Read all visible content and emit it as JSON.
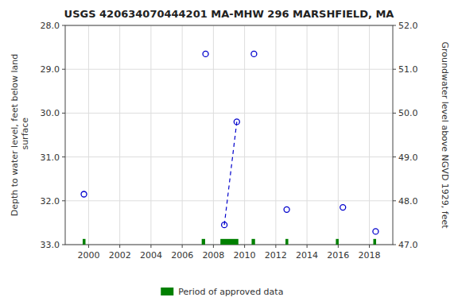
{
  "chart_data": {
    "type": "scatter",
    "title": "USGS 420634070444201 MA-MHW 296 MARSHFIELD, MA",
    "y_label": "Depth to water level, feet below land\n surface",
    "y2_label": "Groundwater level above NGVD 1929, feet",
    "xlim": [
      1998.5,
      2019.5
    ],
    "xticks": [
      2000,
      2002,
      2004,
      2006,
      2008,
      2010,
      2012,
      2014,
      2016,
      2018
    ],
    "ylim": [
      33.0,
      28.0
    ],
    "yticks": [
      {
        "value": 28.0,
        "label": "28.0"
      },
      {
        "value": 29.0,
        "label": "29.0"
      },
      {
        "value": 30.0,
        "label": "30.0"
      },
      {
        "value": 31.0,
        "label": "31.0"
      },
      {
        "value": 32.0,
        "label": "32.0"
      },
      {
        "value": 33.0,
        "label": "33.0"
      }
    ],
    "y2lim": [
      47.0,
      52.0
    ],
    "y2ticks": [
      {
        "value": 52.0,
        "label": "52.0"
      },
      {
        "value": 51.0,
        "label": "51.0"
      },
      {
        "value": 50.0,
        "label": "50.0"
      },
      {
        "value": 49.0,
        "label": "49.0"
      },
      {
        "value": 48.0,
        "label": "48.0"
      },
      {
        "value": 47.0,
        "label": "47.0"
      }
    ],
    "grid": true,
    "legend": "bottom",
    "x": [
      1999.7,
      2007.5,
      2008.7,
      2009.5,
      2010.6,
      2012.7,
      2016.3,
      2018.4
    ],
    "series": [
      {
        "type": "scatter",
        "marker": "circle",
        "color": "#0000cc",
        "values": [
          31.85,
          28.65,
          32.55,
          30.2,
          28.65,
          32.2,
          32.15,
          32.7
        ]
      },
      {
        "type": "line",
        "line_style": "dashed",
        "color": "#0000cc",
        "values": [
          null,
          null,
          32.55,
          30.2,
          null,
          null,
          null,
          null
        ]
      },
      {
        "type": "span",
        "name": "Period of approved data",
        "color": "#008000",
        "x_start": [
          1999.62,
          2007.25,
          2008.45,
          2010.45,
          2012.62,
          2015.85,
          2018.25
        ],
        "x_width": [
          0.18,
          0.22,
          1.15,
          0.22,
          0.18,
          0.18,
          0.18
        ],
        "y": 33.0,
        "height": 0.13
      }
    ]
  }
}
